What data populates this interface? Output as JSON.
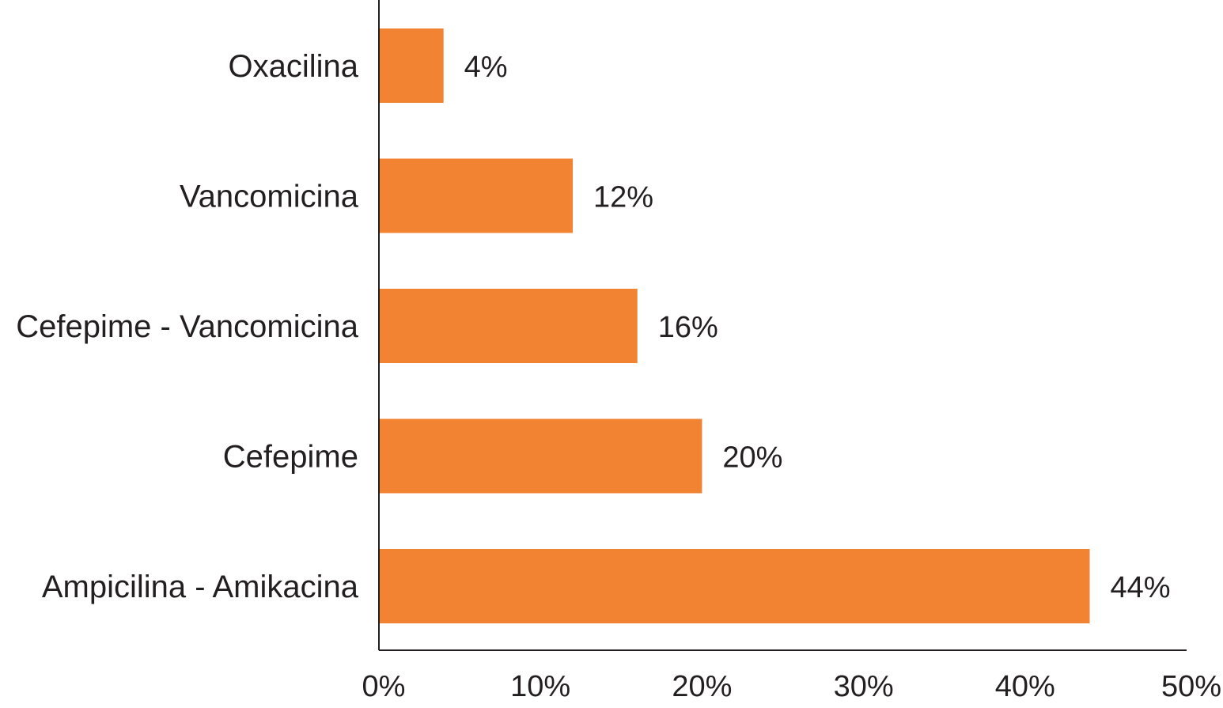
{
  "chart_data": {
    "type": "bar",
    "orientation": "horizontal",
    "categories": [
      "Oxacilina",
      "Vancomicina",
      "Cefepime - Vancomicina",
      "Cefepime",
      "Ampicilina - Amikacina"
    ],
    "values": [
      4,
      12,
      16,
      20,
      44
    ],
    "data_labels": [
      "4%",
      "12%",
      "16%",
      "20%",
      "44%"
    ],
    "xlim": [
      0,
      50
    ],
    "x_ticks": [
      0,
      10,
      20,
      30,
      40,
      50
    ],
    "x_tick_labels": [
      "0%",
      "10%",
      "20%",
      "30%",
      "40%",
      "50%"
    ],
    "title": "",
    "xlabel": "",
    "ylabel": "",
    "grid": false,
    "legend": "none",
    "bar_color": "#f28332",
    "axis_color": "#231f20",
    "text_color": "#231f20"
  }
}
